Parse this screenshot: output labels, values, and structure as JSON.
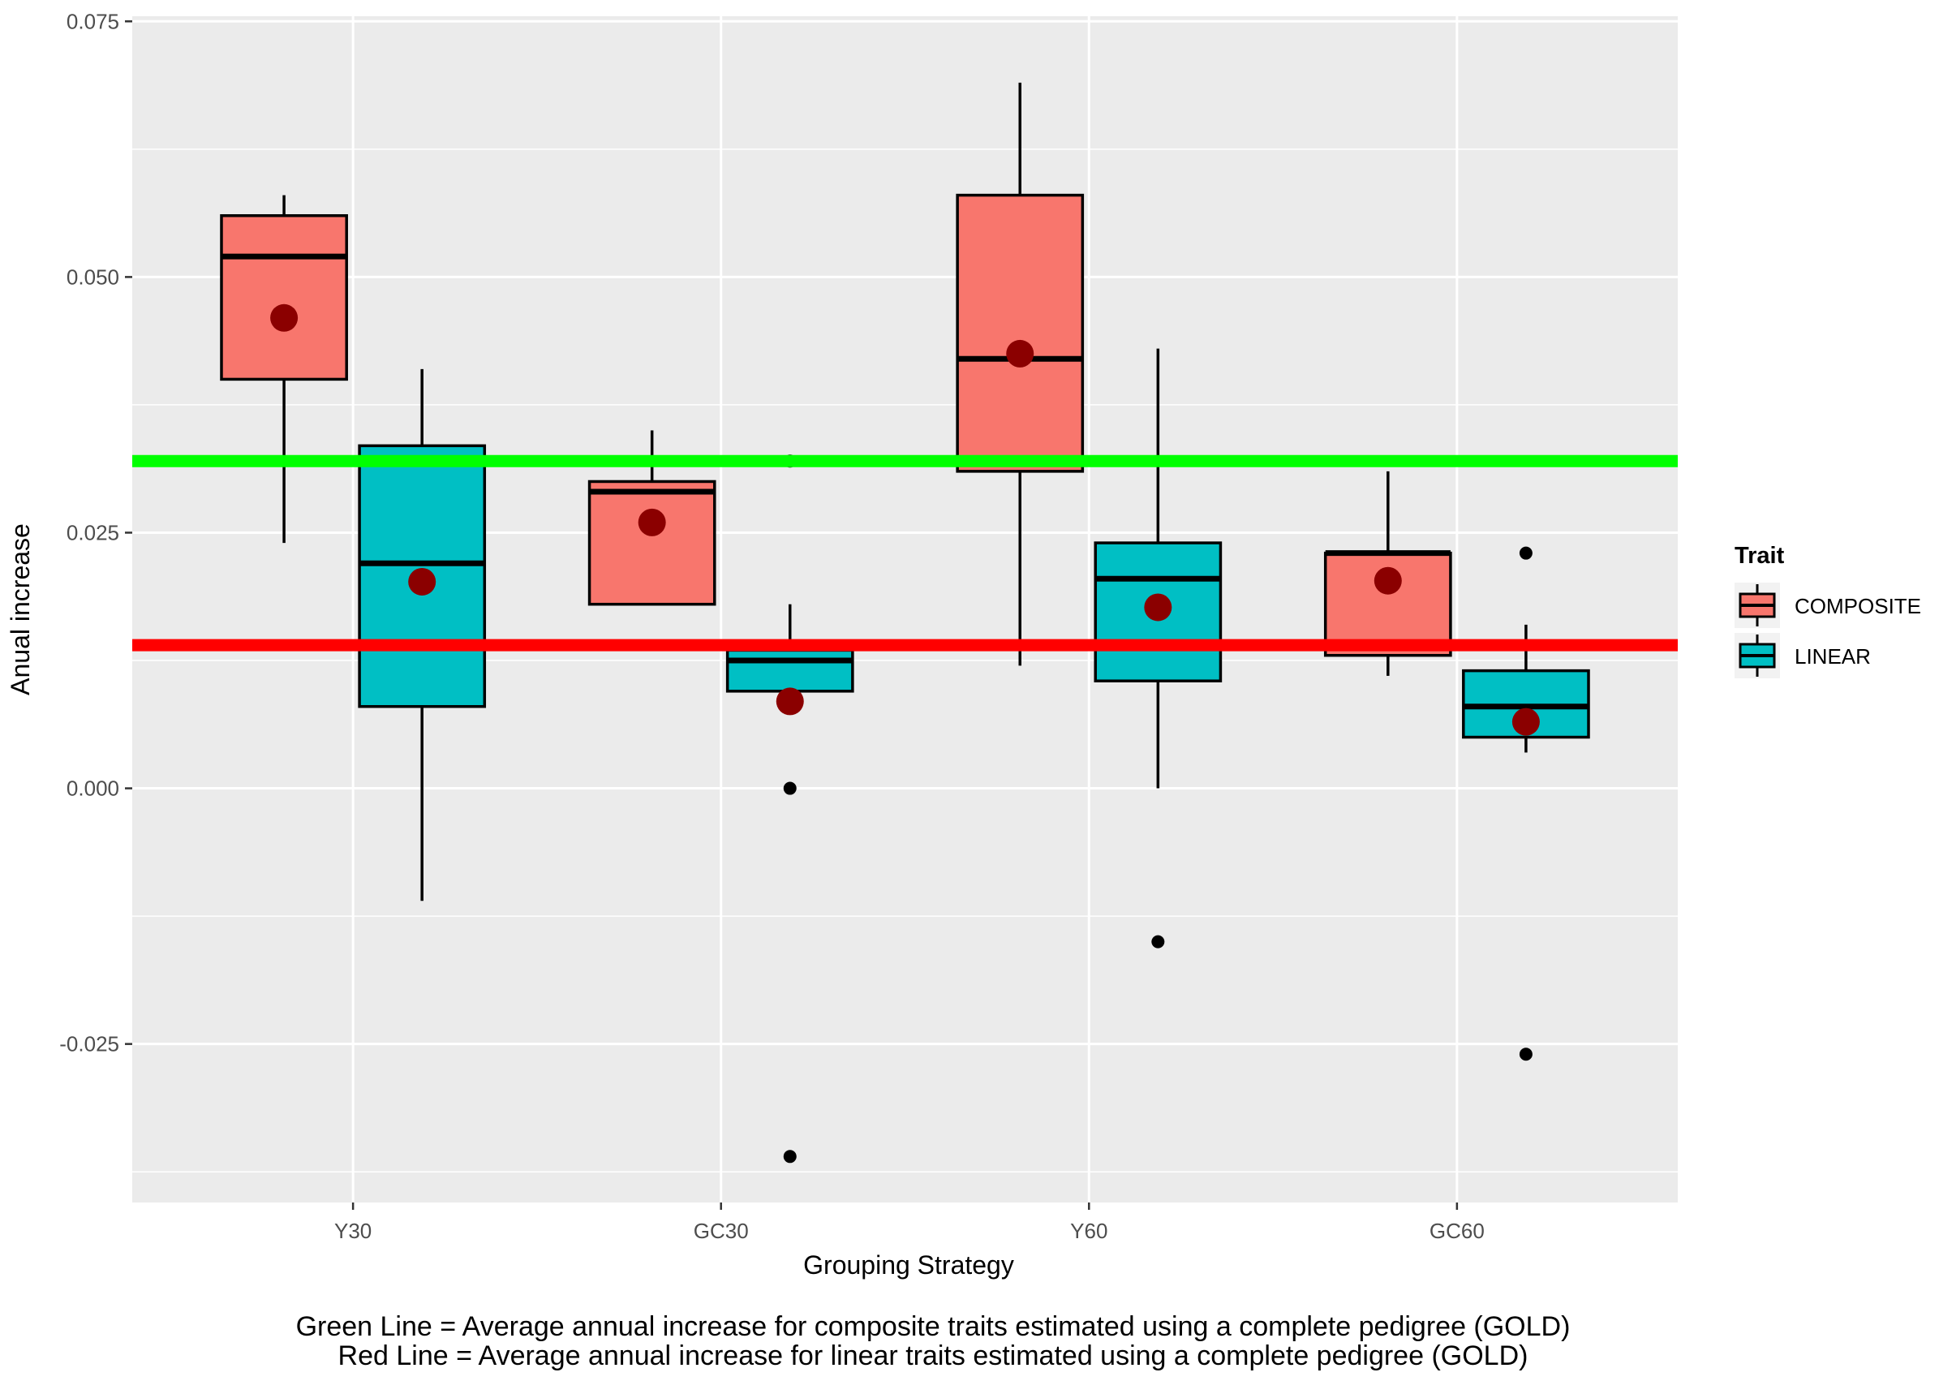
{
  "chart_data": {
    "type": "boxplot",
    "xlabel": "Grouping Strategy",
    "ylabel": "Anual increase",
    "ylim": [
      -0.0405,
      0.0755
    ],
    "yticks": [
      -0.025,
      0.0,
      0.025,
      0.05,
      0.075
    ],
    "ytick_labels": [
      "-0.025",
      "0.000",
      "0.025",
      "0.050",
      "0.075"
    ],
    "categories": [
      "Y30",
      "GC30",
      "Y60",
      "GC60"
    ],
    "legend": {
      "title": "Trait",
      "position": "right",
      "entries": [
        {
          "label": "COMPOSITE",
          "color": "#F8766D"
        },
        {
          "label": "LINEAR",
          "color": "#00BFC4"
        }
      ]
    },
    "series": [
      {
        "name": "COMPOSITE",
        "color": "#F8766D",
        "boxes": [
          {
            "category": "Y30",
            "whisker_low": 0.024,
            "q1": 0.04,
            "median": 0.052,
            "q3": 0.056,
            "whisker_high": 0.058,
            "mean": 0.046,
            "outliers": []
          },
          {
            "category": "GC30",
            "whisker_low": 0.018,
            "q1": 0.018,
            "median": 0.029,
            "q3": 0.03,
            "whisker_high": 0.035,
            "mean": 0.026,
            "outliers": []
          },
          {
            "category": "Y60",
            "whisker_low": 0.012,
            "q1": 0.031,
            "median": 0.042,
            "q3": 0.058,
            "whisker_high": 0.069,
            "mean": 0.0425,
            "outliers": []
          },
          {
            "category": "GC60",
            "whisker_low": 0.011,
            "q1": 0.013,
            "median": 0.023,
            "q3": 0.023,
            "whisker_high": 0.031,
            "mean": 0.0203,
            "outliers": []
          }
        ]
      },
      {
        "name": "LINEAR",
        "color": "#00BFC4",
        "boxes": [
          {
            "category": "Y30",
            "whisker_low": -0.011,
            "q1": 0.008,
            "median": 0.022,
            "q3": 0.0335,
            "whisker_high": 0.041,
            "mean": 0.0202,
            "outliers": []
          },
          {
            "category": "GC30",
            "whisker_low": 0.0095,
            "q1": 0.0095,
            "median": 0.0125,
            "q3": 0.0135,
            "whisker_high": 0.018,
            "mean": 0.0085,
            "outliers": [
              0.032,
              0.0,
              -0.036
            ]
          },
          {
            "category": "Y60",
            "whisker_low": 0.0,
            "q1": 0.0105,
            "median": 0.0205,
            "q3": 0.024,
            "whisker_high": 0.043,
            "mean": 0.0177,
            "outliers": [
              -0.015
            ]
          },
          {
            "category": "GC60",
            "whisker_low": 0.0035,
            "q1": 0.005,
            "median": 0.008,
            "q3": 0.0115,
            "whisker_high": 0.016,
            "mean": 0.0065,
            "outliers": [
              0.023,
              -0.026
            ]
          }
        ]
      }
    ],
    "mean_marker_color": "#8B0000",
    "reference_lines": [
      {
        "name": "green",
        "value": 0.032,
        "color": "#00FF00"
      },
      {
        "name": "red",
        "value": 0.014,
        "color": "#FF0000"
      }
    ]
  },
  "captions": {
    "line1": "Green Line = Average annual increase for composite traits estimated using a complete pedigree (GOLD)",
    "line2": "Red Line = Average annual increase for linear traits estimated using a complete pedigree (GOLD)"
  }
}
